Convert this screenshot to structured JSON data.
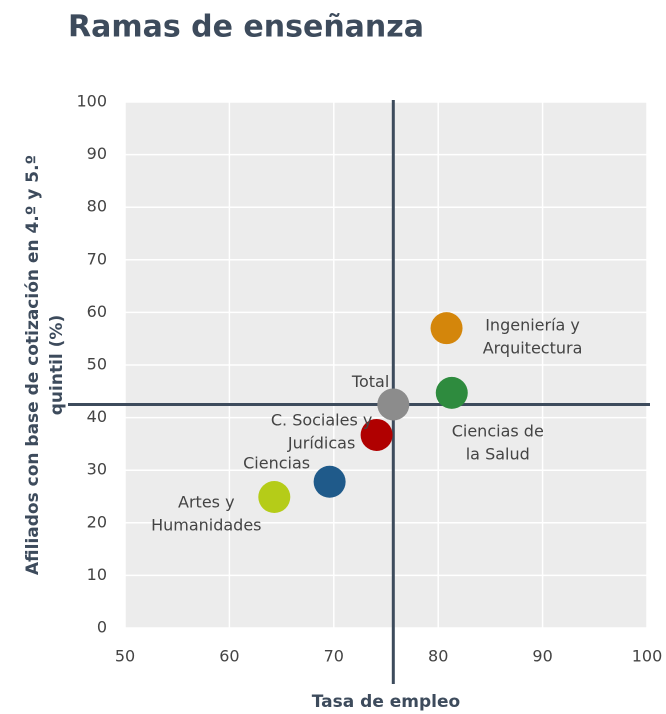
{
  "chart_data": {
    "type": "scatter",
    "title": "Ramas de enseñanza",
    "xlabel": "Tasa de empleo",
    "ylabel": [
      "Afiliados con base de cotización en 4.º y 5.º",
      "quintil (%)"
    ],
    "xlim": [
      50,
      100
    ],
    "xticks": [
      50,
      60,
      70,
      80,
      90,
      100
    ],
    "ylim": [
      0,
      100
    ],
    "yticks": [
      0,
      10,
      20,
      30,
      40,
      50,
      60,
      70,
      80,
      90,
      100
    ],
    "grid": true,
    "points": [
      {
        "label": [
          "Ingeniería y",
          "Arquitectura"
        ],
        "color": "#d4860b",
        "x": 80.8,
        "y": 57
      },
      {
        "label": [
          "Ciencias de",
          "la Salud"
        ],
        "color": "#2e8b3e",
        "x": 81.3,
        "y": 44.7
      },
      {
        "label": [
          "Total"
        ],
        "color": "#8c8c8c",
        "x": 75.7,
        "y": 42.5
      },
      {
        "label": [
          "C. Sociales y",
          "Jurídicas"
        ],
        "color": "#b00000",
        "x": 74.1,
        "y": 36.7
      },
      {
        "label": [
          "Ciencias"
        ],
        "color": "#1f5a8a",
        "x": 69.6,
        "y": 27.8
      },
      {
        "label": [
          "Artes y",
          "Humanidades"
        ],
        "color": "#b5cc18",
        "x": 64.3,
        "y": 24.9
      }
    ]
  }
}
